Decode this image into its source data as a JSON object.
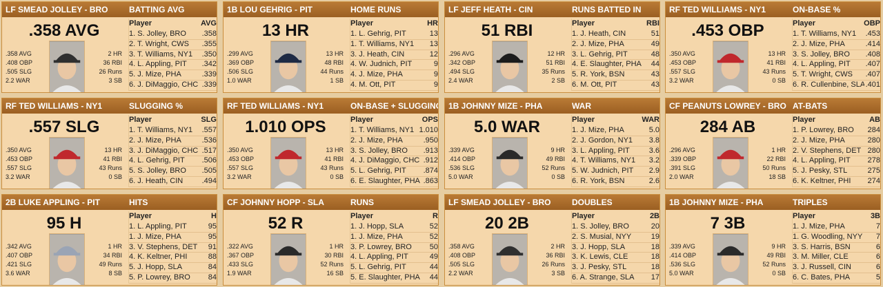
{
  "cards": [
    {
      "player": "LF SMEAD JOLLEY - BRO",
      "stat": "BATTING AVG",
      "big": ".358 AVG",
      "left": [
        ".358 AVG",
        ".408 OBP",
        ".505 SLG",
        "2.2 WAR"
      ],
      "right": [
        "2 HR",
        "36 RBI",
        "26 Runs",
        "3 SB"
      ],
      "col_player": "Player",
      "col_stat": "AVG",
      "rows": [
        [
          "1. S. Jolley, BRO",
          ".358"
        ],
        [
          "2. T. Wright, CWS",
          ".355"
        ],
        [
          "3. T. Williams, NY1",
          ".350"
        ],
        [
          "4. L. Appling, PIT",
          ".342"
        ],
        [
          "5. J. Mize, PHA",
          ".339"
        ],
        [
          "6. J. DiMaggio, CHC",
          ".339"
        ]
      ],
      "cap_color": "#2f2f2f"
    },
    {
      "player": "1B LOU GEHRIG - PIT",
      "stat": "HOME RUNS",
      "big": "13 HR",
      "left": [
        ".299 AVG",
        ".369 OBP",
        ".506 SLG",
        "1.0 WAR"
      ],
      "right": [
        "13 HR",
        "48 RBI",
        "44 Runs",
        "1 SB"
      ],
      "col_player": "Player",
      "col_stat": "HR",
      "rows": [
        [
          "1. L. Gehrig, PIT",
          "13"
        ],
        [
          "1. T. Williams, NY1",
          "13"
        ],
        [
          "3. J. Heath, CIN",
          "12"
        ],
        [
          "4. W. Judnich, PIT",
          "9"
        ],
        [
          "4. J. Mize, PHA",
          "9"
        ],
        [
          "4. M. Ott, PIT",
          "9"
        ]
      ],
      "cap_color": "#1e2a44"
    },
    {
      "player": "LF JEFF HEATH - CIN",
      "stat": "RUNS BATTED IN",
      "big": "51 RBI",
      "left": [
        ".296 AVG",
        ".342 OBP",
        ".494 SLG",
        "2.4 WAR"
      ],
      "right": [
        "12 HR",
        "51 RBI",
        "35 Runs",
        "2 SB"
      ],
      "col_player": "Player",
      "col_stat": "RBI",
      "rows": [
        [
          "1. J. Heath, CIN",
          "51"
        ],
        [
          "2. J. Mize, PHA",
          "49"
        ],
        [
          "3. L. Gehrig, PIT",
          "48"
        ],
        [
          "4. E. Slaughter, PHA",
          "44"
        ],
        [
          "5. R. York, BSN",
          "43"
        ],
        [
          "6. M. Ott, PIT",
          "43"
        ]
      ],
      "cap_color": "#1c1c1c"
    },
    {
      "player": "RF TED WILLIAMS - NY1",
      "stat": "ON-BASE %",
      "big": ".453 OBP",
      "left": [
        ".350 AVG",
        ".453 OBP",
        ".557 SLG",
        "3.2 WAR"
      ],
      "right": [
        "13 HR",
        "41 RBI",
        "43 Runs",
        "0 SB"
      ],
      "col_player": "Player",
      "col_stat": "OBP",
      "rows": [
        [
          "1. T. Williams, NY1",
          ".453"
        ],
        [
          "2. J. Mize, PHA",
          ".414"
        ],
        [
          "3. S. Jolley, BRO",
          ".408"
        ],
        [
          "4. L. Appling, PIT",
          ".407"
        ],
        [
          "5. T. Wright, CWS",
          ".407"
        ],
        [
          "6. R. Cullenbine, SLA",
          ".401"
        ]
      ],
      "cap_color": "#c0282d"
    },
    {
      "player": "RF TED WILLIAMS - NY1",
      "stat": "SLUGGING %",
      "big": ".557 SLG",
      "left": [
        ".350 AVG",
        ".453 OBP",
        ".557 SLG",
        "3.2 WAR"
      ],
      "right": [
        "13 HR",
        "41 RBI",
        "43 Runs",
        "0 SB"
      ],
      "col_player": "Player",
      "col_stat": "SLG",
      "rows": [
        [
          "1. T. Williams, NY1",
          ".557"
        ],
        [
          "2. J. Mize, PHA",
          ".536"
        ],
        [
          "3. J. DiMaggio, CHC",
          ".517"
        ],
        [
          "4. L. Gehrig, PIT",
          ".506"
        ],
        [
          "5. S. Jolley, BRO",
          ".505"
        ],
        [
          "6. J. Heath, CIN",
          ".494"
        ]
      ],
      "cap_color": "#c0282d"
    },
    {
      "player": "RF TED WILLIAMS - NY1",
      "stat": "ON-BASE + SLUGGING",
      "big": "1.010 OPS",
      "left": [
        ".350 AVG",
        ".453 OBP",
        ".557 SLG",
        "3.2 WAR"
      ],
      "right": [
        "13 HR",
        "41 RBI",
        "43 Runs",
        "0 SB"
      ],
      "col_player": "Player",
      "col_stat": "OPS",
      "rows": [
        [
          "1. T. Williams, NY1",
          "1.010"
        ],
        [
          "2. J. Mize, PHA",
          ".950"
        ],
        [
          "3. S. Jolley, BRO",
          ".913"
        ],
        [
          "4. J. DiMaggio, CHC",
          ".912"
        ],
        [
          "5. L. Gehrig, PIT",
          ".874"
        ],
        [
          "6. E. Slaughter, PHA",
          ".863"
        ]
      ],
      "cap_color": "#c0282d"
    },
    {
      "player": "1B JOHNNY MIZE - PHA",
      "stat": "WAR",
      "big": "5.0 WAR",
      "left": [
        ".339 AVG",
        ".414 OBP",
        ".536 SLG",
        "5.0 WAR"
      ],
      "right": [
        "9 HR",
        "49 RBI",
        "52 Runs",
        "0 SB"
      ],
      "col_player": "Player",
      "col_stat": "WAR",
      "rows": [
        [
          "1. J. Mize, PHA",
          "5.0"
        ],
        [
          "2. J. Gordon, NY1",
          "3.8"
        ],
        [
          "3. L. Appling, PIT",
          "3.6"
        ],
        [
          "4. T. Williams, NY1",
          "3.2"
        ],
        [
          "5. W. Judnich, PIT",
          "2.9"
        ],
        [
          "6. R. York, BSN",
          "2.6"
        ]
      ],
      "cap_color": "#2a2a2a"
    },
    {
      "player": "CF PEANUTS LOWREY - BRO",
      "stat": "AT-BATS",
      "big": "284 AB",
      "left": [
        ".296 AVG",
        ".339 OBP",
        ".391 SLG",
        "2.0 WAR"
      ],
      "right": [
        "1 HR",
        "22 RBI",
        "50 Runs",
        "18 SB"
      ],
      "col_player": "Player",
      "col_stat": "AB",
      "rows": [
        [
          "1. P. Lowrey, BRO",
          "284"
        ],
        [
          "2. J. Mize, PHA",
          "280"
        ],
        [
          "2. V. Stephens, DET",
          "280"
        ],
        [
          "4. L. Appling, PIT",
          "278"
        ],
        [
          "5. J. Pesky, STL",
          "275"
        ],
        [
          "6. K. Keltner, PHI",
          "274"
        ]
      ],
      "cap_color": "#c0282d"
    },
    {
      "player": "2B LUKE APPLING - PIT",
      "stat": "HITS",
      "big": "95 H",
      "left": [
        ".342 AVG",
        ".407 OBP",
        ".421 SLG",
        "3.6 WAR"
      ],
      "right": [
        "1 HR",
        "34 RBI",
        "49 Runs",
        "8 SB"
      ],
      "col_player": "Player",
      "col_stat": "H",
      "rows": [
        [
          "1. L. Appling, PIT",
          "95"
        ],
        [
          "1. J. Mize, PHA",
          "95"
        ],
        [
          "3. V. Stephens, DET",
          "91"
        ],
        [
          "4. K. Keltner, PHI",
          "88"
        ],
        [
          "5. J. Hopp, SLA",
          "84"
        ],
        [
          "5. P. Lowrey, BRO",
          "84"
        ]
      ],
      "cap_color": "#9aa4b5"
    },
    {
      "player": "CF JOHNNY HOPP - SLA",
      "stat": "RUNS",
      "big": "52 R",
      "left": [
        ".322 AVG",
        ".367 OBP",
        ".433 SLG",
        "1.9 WAR"
      ],
      "right": [
        "1 HR",
        "30 RBI",
        "52 Runs",
        "16 SB"
      ],
      "col_player": "Player",
      "col_stat": "R",
      "rows": [
        [
          "1. J. Hopp, SLA",
          "52"
        ],
        [
          "1. J. Mize, PHA",
          "52"
        ],
        [
          "3. P. Lowrey, BRO",
          "50"
        ],
        [
          "4. L. Appling, PIT",
          "49"
        ],
        [
          "5. L. Gehrig, PIT",
          "44"
        ],
        [
          "5. E. Slaughter, PHA",
          "44"
        ]
      ],
      "cap_color": "#2a2a2a"
    },
    {
      "player": "LF SMEAD JOLLEY - BRO",
      "stat": "DOUBLES",
      "big": "20 2B",
      "left": [
        ".358 AVG",
        ".408 OBP",
        ".505 SLG",
        "2.2 WAR"
      ],
      "right": [
        "2 HR",
        "36 RBI",
        "26 Runs",
        "3 SB"
      ],
      "col_player": "Player",
      "col_stat": "2B",
      "rows": [
        [
          "1. S. Jolley, BRO",
          "20"
        ],
        [
          "2. S. Musial, NYY",
          "19"
        ],
        [
          "3. J. Hopp, SLA",
          "18"
        ],
        [
          "3. K. Lewis, CLE",
          "18"
        ],
        [
          "3. J. Pesky, STL",
          "18"
        ],
        [
          "6. A. Strange, SLA",
          "17"
        ]
      ],
      "cap_color": "#2f2f2f"
    },
    {
      "player": "1B JOHNNY MIZE - PHA",
      "stat": "TRIPLES",
      "big": "7 3B",
      "left": [
        ".339 AVG",
        ".414 OBP",
        ".536 SLG",
        "5.0 WAR"
      ],
      "right": [
        "9 HR",
        "49 RBI",
        "52 Runs",
        "0 SB"
      ],
      "col_player": "Player",
      "col_stat": "3B",
      "rows": [
        [
          "1. J. Mize, PHA",
          "7"
        ],
        [
          "1. G. Woodling, NYY",
          "7"
        ],
        [
          "3. S. Harris, BSN",
          "6"
        ],
        [
          "3. M. Miller, CLE",
          "6"
        ],
        [
          "3. J. Russell, CIN",
          "6"
        ],
        [
          "6. C. Bates, PHA",
          "5"
        ]
      ],
      "cap_color": "#2a2a2a"
    }
  ]
}
